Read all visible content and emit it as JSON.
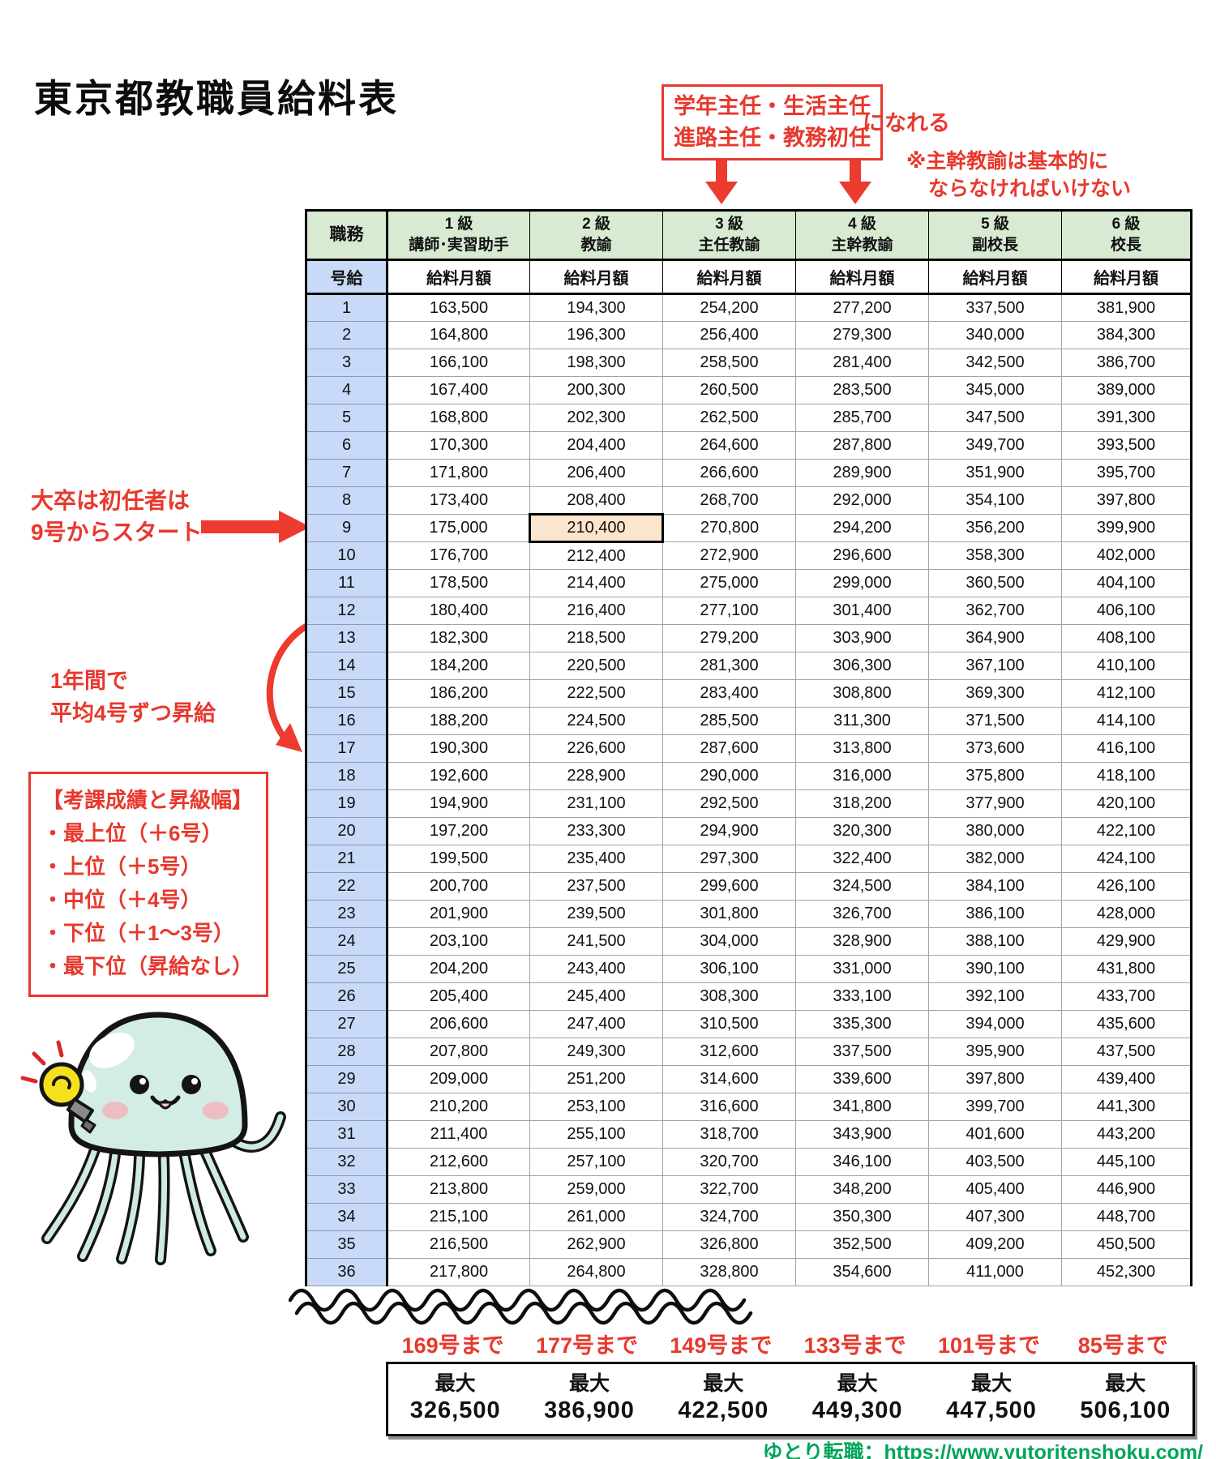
{
  "title": "東京都教職員給料表",
  "colors": {
    "accent_red": "#e8382d",
    "footer_green": "#00a45a",
    "header_green": "#d9ead3",
    "kyu_column_blue": "#c9daf8",
    "highlight_orange": "#fce5cd"
  },
  "annotations": {
    "promo_line1": "学年主任・生活主任",
    "promo_line2": "進路主任・教務初任",
    "promo_suffix": "になれる",
    "note_line1": "※主幹教諭は基本的に",
    "note_line2": "ならなければいけない",
    "start_line1": "大卒は初任者は",
    "start_line2": "9号からスタート",
    "raise_line1": "1年間で",
    "raise_line2": "平均4号ずつ昇給",
    "grade_box_title": "【考課成績と昇級幅】",
    "grade_box_items": [
      "・最上位（＋6号）",
      "・上位（＋5号）",
      "・中位（＋4号）",
      "・下位（＋1～3号）",
      "・最下位（昇給なし）"
    ]
  },
  "table_labels": {
    "corner": "職務",
    "row_header": "号給",
    "salary": "給料月額"
  },
  "chart_data": {
    "type": "table",
    "title": "東京都教職員給料表",
    "row_axis_label": "号給",
    "value_label": "給料月額",
    "columns": [
      {
        "grade": "1 級",
        "role": "講師･実習助手"
      },
      {
        "grade": "2 級",
        "role": "教諭"
      },
      {
        "grade": "3 級",
        "role": "主任教諭"
      },
      {
        "grade": "4 級",
        "role": "主幹教諭"
      },
      {
        "grade": "5 級",
        "role": "副校長"
      },
      {
        "grade": "6 級",
        "role": "校長"
      }
    ],
    "rows": [
      [
        "163,500",
        "194,300",
        "254,200",
        "277,200",
        "337,500",
        "381,900"
      ],
      [
        "164,800",
        "196,300",
        "256,400",
        "279,300",
        "340,000",
        "384,300"
      ],
      [
        "166,100",
        "198,300",
        "258,500",
        "281,400",
        "342,500",
        "386,700"
      ],
      [
        "167,400",
        "200,300",
        "260,500",
        "283,500",
        "345,000",
        "389,000"
      ],
      [
        "168,800",
        "202,300",
        "262,500",
        "285,700",
        "347,500",
        "391,300"
      ],
      [
        "170,300",
        "204,400",
        "264,600",
        "287,800",
        "349,700",
        "393,500"
      ],
      [
        "171,800",
        "206,400",
        "266,600",
        "289,900",
        "351,900",
        "395,700"
      ],
      [
        "173,400",
        "208,400",
        "268,700",
        "292,000",
        "354,100",
        "397,800"
      ],
      [
        "175,000",
        "210,400",
        "270,800",
        "294,200",
        "356,200",
        "399,900"
      ],
      [
        "176,700",
        "212,400",
        "272,900",
        "296,600",
        "358,300",
        "402,000"
      ],
      [
        "178,500",
        "214,400",
        "275,000",
        "299,000",
        "360,500",
        "404,100"
      ],
      [
        "180,400",
        "216,400",
        "277,100",
        "301,400",
        "362,700",
        "406,100"
      ],
      [
        "182,300",
        "218,500",
        "279,200",
        "303,900",
        "364,900",
        "408,100"
      ],
      [
        "184,200",
        "220,500",
        "281,300",
        "306,300",
        "367,100",
        "410,100"
      ],
      [
        "186,200",
        "222,500",
        "283,400",
        "308,800",
        "369,300",
        "412,100"
      ],
      [
        "188,200",
        "224,500",
        "285,500",
        "311,300",
        "371,500",
        "414,100"
      ],
      [
        "190,300",
        "226,600",
        "287,600",
        "313,800",
        "373,600",
        "416,100"
      ],
      [
        "192,600",
        "228,900",
        "290,000",
        "316,000",
        "375,800",
        "418,100"
      ],
      [
        "194,900",
        "231,100",
        "292,500",
        "318,200",
        "377,900",
        "420,100"
      ],
      [
        "197,200",
        "233,300",
        "294,900",
        "320,300",
        "380,000",
        "422,100"
      ],
      [
        "199,500",
        "235,400",
        "297,300",
        "322,400",
        "382,000",
        "424,100"
      ],
      [
        "200,700",
        "237,500",
        "299,600",
        "324,500",
        "384,100",
        "426,100"
      ],
      [
        "201,900",
        "239,500",
        "301,800",
        "326,700",
        "386,100",
        "428,000"
      ],
      [
        "203,100",
        "241,500",
        "304,000",
        "328,900",
        "388,100",
        "429,900"
      ],
      [
        "204,200",
        "243,400",
        "306,100",
        "331,000",
        "390,100",
        "431,800"
      ],
      [
        "205,400",
        "245,400",
        "308,300",
        "333,100",
        "392,100",
        "433,700"
      ],
      [
        "206,600",
        "247,400",
        "310,500",
        "335,300",
        "394,000",
        "435,600"
      ],
      [
        "207,800",
        "249,300",
        "312,600",
        "337,500",
        "395,900",
        "437,500"
      ],
      [
        "209,000",
        "251,200",
        "314,600",
        "339,600",
        "397,800",
        "439,400"
      ],
      [
        "210,200",
        "253,100",
        "316,600",
        "341,800",
        "399,700",
        "441,300"
      ],
      [
        "211,400",
        "255,100",
        "318,700",
        "343,900",
        "401,600",
        "443,200"
      ],
      [
        "212,600",
        "257,100",
        "320,700",
        "346,100",
        "403,500",
        "445,100"
      ],
      [
        "213,800",
        "259,000",
        "322,700",
        "348,200",
        "405,400",
        "446,900"
      ],
      [
        "215,100",
        "261,000",
        "324,700",
        "350,300",
        "407,300",
        "448,700"
      ],
      [
        "216,500",
        "262,900",
        "326,800",
        "352,500",
        "409,200",
        "450,500"
      ],
      [
        "217,800",
        "264,800",
        "328,800",
        "354,600",
        "411,000",
        "452,300"
      ]
    ],
    "highlight_cell": {
      "kyu": 9,
      "column": "2 級",
      "column_index": 1,
      "value": "210,400"
    },
    "max_kyu_labels": [
      "169号まで",
      "177号まで",
      "149号まで",
      "133号まで",
      "101号まで",
      "85号まで"
    ],
    "max_row": {
      "label": "最大",
      "values": [
        "326,500",
        "386,900",
        "422,500",
        "449,300",
        "447,500",
        "506,100"
      ]
    }
  },
  "footer": {
    "credit": "ゆとり転職：https://www.yutoritenshoku.com/"
  }
}
